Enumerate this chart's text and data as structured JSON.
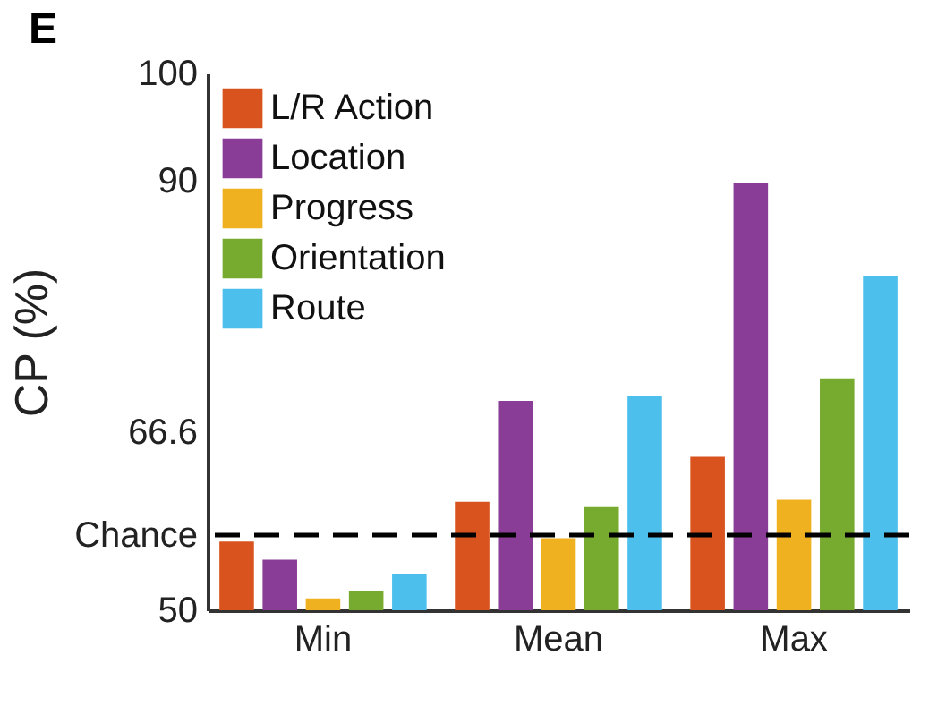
{
  "chart_data": {
    "type": "bar",
    "title": "E",
    "ylabel": "CP (%)",
    "categories": [
      "Min",
      "Mean",
      "Max"
    ],
    "series": [
      {
        "name": "L/R Action",
        "color": "#d9531e",
        "values": [
          56.4,
          60.1,
          64.3
        ]
      },
      {
        "name": "Location",
        "color": "#8a3d96",
        "values": [
          54.7,
          69.5,
          89.8
        ]
      },
      {
        "name": "Progress",
        "color": "#efb120",
        "values": [
          51.1,
          56.7,
          60.3
        ]
      },
      {
        "name": "Orientation",
        "color": "#77ab2f",
        "values": [
          51.8,
          59.6,
          71.6
        ]
      },
      {
        "name": "Route",
        "color": "#4dbfed",
        "values": [
          53.4,
          70.0,
          81.1
        ]
      }
    ],
    "ylim": [
      50,
      100
    ],
    "yticks": [
      50,
      {
        "value": 57,
        "label": "Chance"
      },
      66.6,
      90,
      100
    ],
    "ref_lines": [
      {
        "axis": "y",
        "value": 57,
        "line_style": "dashed",
        "color": "#000000"
      }
    ],
    "legend": "top left",
    "grid": false
  }
}
